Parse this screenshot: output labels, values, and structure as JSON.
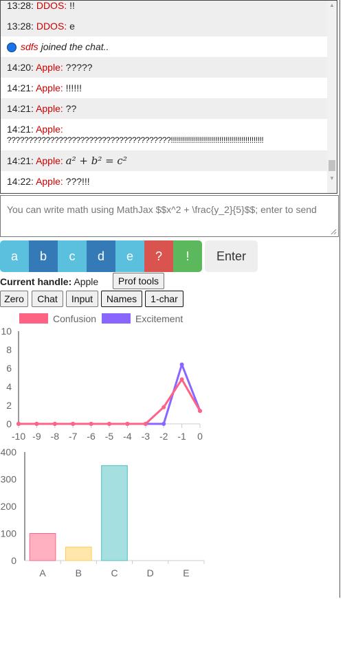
{
  "chat": {
    "messages": [
      {
        "time": "13:28:",
        "who": "DDOS:",
        "text": "!!"
      },
      {
        "time": "13:28:",
        "who": "DDOS:",
        "text": "e"
      },
      {
        "type": "join",
        "who": "sdfs",
        "text": "joined the chat.."
      },
      {
        "time": "14:20:",
        "who": "Apple:",
        "text": "?????"
      },
      {
        "time": "14:21:",
        "who": "Apple:",
        "text": "!!!!!!"
      },
      {
        "time": "14:21:",
        "who": "Apple:",
        "text": "??"
      },
      {
        "time": "14:21:",
        "who": "Apple:",
        "text": "",
        "line2": "??????????????????????????????????????!!!!!!!!!!!!!!!!!!!!!!!!!!!!!!!!!!!!!!!!!!!!!!"
      },
      {
        "time": "14:21:",
        "who": "Apple:",
        "math": "a² + b² = c²"
      },
      {
        "time": "14:22:",
        "who": "Apple:",
        "text": "???!!!"
      }
    ]
  },
  "compose": {
    "placeholder": "You can write math using MathJax $$x^2 + \\frac{y_2}{5}$$; enter to send"
  },
  "answers": [
    {
      "label": "a",
      "color": "#5bc0de"
    },
    {
      "label": "b",
      "color": "#337ab7"
    },
    {
      "label": "c",
      "color": "#5bc0de"
    },
    {
      "label": "d",
      "color": "#337ab7"
    },
    {
      "label": "e",
      "color": "#5bc0de"
    },
    {
      "label": "?",
      "color": "#d9534f"
    },
    {
      "label": "!",
      "color": "#5cb85c"
    }
  ],
  "enter_label": "Enter",
  "handle": {
    "label": "Current handle:",
    "value": "Apple"
  },
  "prof_tools_label": "Prof tools",
  "toolbar": {
    "zero": "Zero",
    "chat": "Chat",
    "input": "Input",
    "names": "Names",
    "onechar": "1-char"
  },
  "chart_data": [
    {
      "type": "line",
      "x": [
        -10,
        -9,
        -8,
        -7,
        -6,
        -5,
        -4,
        -3,
        -2,
        -1,
        0
      ],
      "series": [
        {
          "name": "Confusion",
          "color": "#ff6384",
          "values": [
            0,
            0,
            0,
            0,
            0,
            0,
            0,
            0,
            1.8,
            4.8,
            1.4
          ]
        },
        {
          "name": "Excitement",
          "color": "#8966ff",
          "values": [
            0,
            0,
            0,
            0,
            0,
            0,
            0,
            0,
            0,
            6.4,
            1.4
          ]
        }
      ],
      "ylim": [
        0,
        10
      ],
      "yticks": [
        0,
        2,
        4,
        6,
        8,
        10
      ],
      "legend": "top"
    },
    {
      "type": "bar",
      "categories": [
        "A",
        "B",
        "C",
        "D",
        "E"
      ],
      "values": [
        100,
        50,
        350,
        0,
        0
      ],
      "colors": [
        "#ffb1c1",
        "#ffe6aa",
        "#a5dfdf",
        "#9ad0f5",
        "#ccb2ff"
      ],
      "borders": [
        "#ff6384",
        "#ffcd56",
        "#4bc0c0",
        "#36a2eb",
        "#9966ff"
      ],
      "ylim": [
        0,
        400
      ],
      "yticks": [
        0,
        100,
        200,
        300,
        400
      ]
    }
  ]
}
